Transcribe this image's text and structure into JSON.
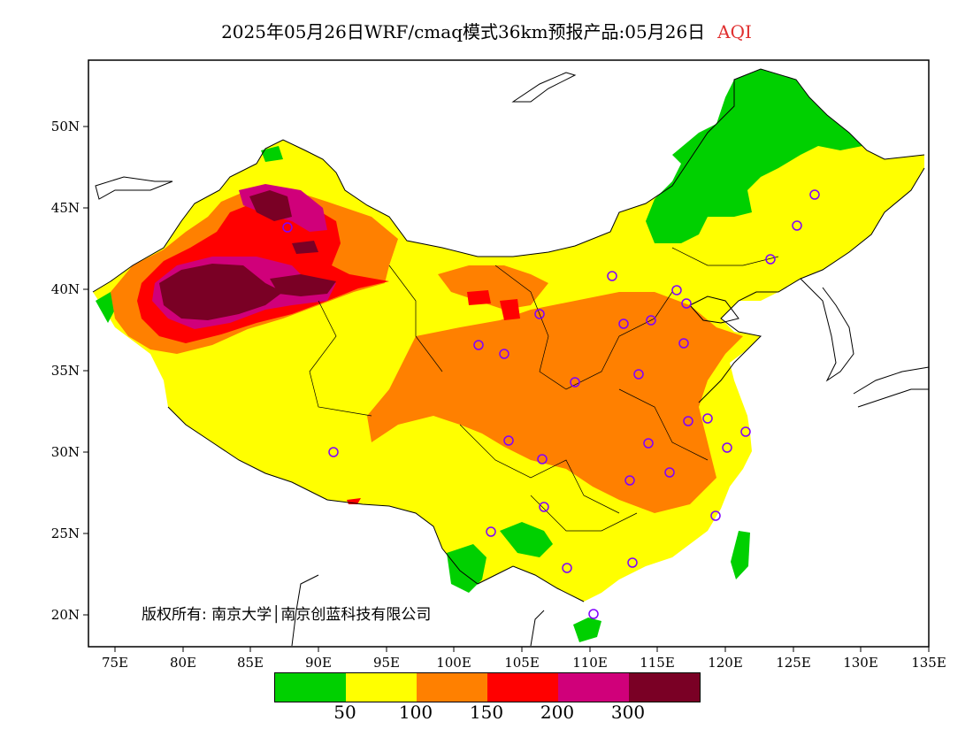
{
  "header": {
    "title": "2025年05月26日WRF/cmaq模式36km预报产品:05月26日",
    "variable": "AQI"
  },
  "axes": {
    "y_ticks": [
      "50N",
      "45N",
      "40N",
      "35N",
      "30N",
      "25N",
      "20N"
    ],
    "x_ticks": [
      "75E",
      "80E",
      "85E",
      "90E",
      "95E",
      "100E",
      "105E",
      "110E",
      "115E",
      "120E",
      "125E",
      "130E",
      "135E"
    ]
  },
  "legend": {
    "colors": [
      "#00d000",
      "#ffff00",
      "#ff8000",
      "#ff0000",
      "#d0007a",
      "#7a0025"
    ],
    "labels": [
      "50",
      "100",
      "150",
      "200",
      "300"
    ]
  },
  "copyright": "版权所有: 南京大学│南京创蓝科技有限公司",
  "colors": {
    "good": "#00d000",
    "moderate": "#ffff00",
    "usg": "#ff8000",
    "unhealthy": "#ff0000",
    "very_unhealthy": "#d0007a",
    "hazardous": "#7a0025",
    "station_marker": "#8000ff"
  }
}
